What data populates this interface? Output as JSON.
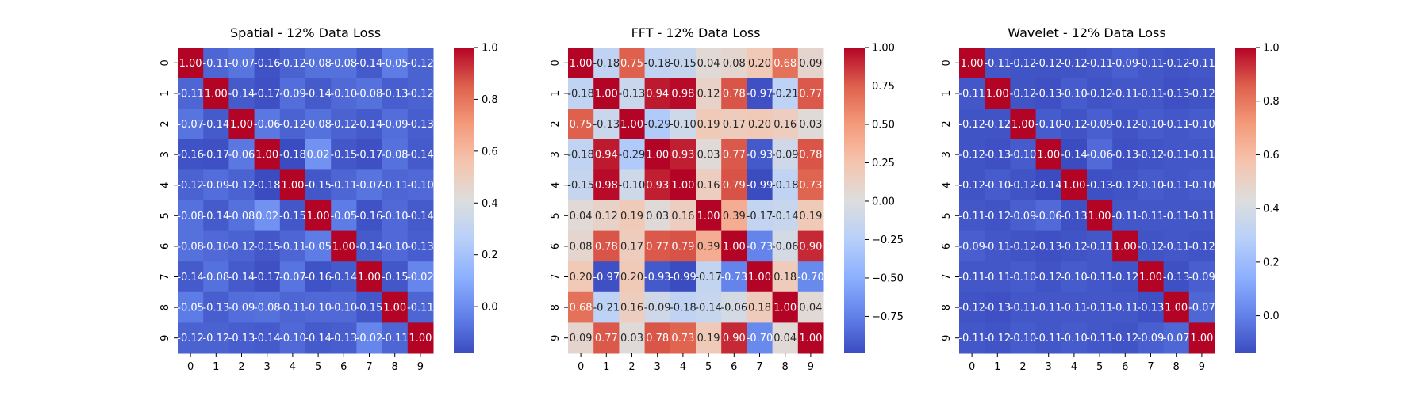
{
  "chart_data": [
    {
      "type": "heatmap",
      "title": "Spatial - 12% Data Loss",
      "x_ticks": [
        "0",
        "1",
        "2",
        "3",
        "4",
        "5",
        "6",
        "7",
        "8",
        "9"
      ],
      "y_ticks": [
        "0",
        "1",
        "2",
        "3",
        "4",
        "5",
        "6",
        "7",
        "8",
        "9"
      ],
      "colormap": "coolwarm",
      "vmin": -0.18,
      "vmax": 1.0,
      "colorbar_ticks": [
        1.0,
        0.8,
        0.6,
        0.4,
        0.2,
        0.0
      ],
      "colorbar_tick_labels": [
        "1.0",
        "0.8",
        "0.6",
        "0.4",
        "0.2",
        "0.0"
      ],
      "values": [
        [
          1.0,
          -0.11,
          -0.07,
          -0.16,
          -0.12,
          -0.08,
          -0.08,
          -0.14,
          -0.05,
          -0.12
        ],
        [
          -0.11,
          1.0,
          -0.14,
          -0.17,
          -0.09,
          -0.14,
          -0.1,
          -0.08,
          -0.13,
          -0.12
        ],
        [
          -0.07,
          -0.14,
          1.0,
          -0.06,
          -0.12,
          -0.08,
          -0.12,
          -0.14,
          -0.09,
          -0.13
        ],
        [
          -0.16,
          -0.17,
          -0.06,
          1.0,
          -0.18,
          0.02,
          -0.15,
          -0.17,
          -0.08,
          -0.14
        ],
        [
          -0.12,
          -0.09,
          -0.12,
          -0.18,
          1.0,
          -0.15,
          -0.11,
          -0.07,
          -0.11,
          -0.1
        ],
        [
          -0.08,
          -0.14,
          -0.08,
          0.02,
          -0.15,
          1.0,
          -0.05,
          -0.16,
          -0.1,
          -0.14
        ],
        [
          -0.08,
          -0.1,
          -0.12,
          -0.15,
          -0.11,
          -0.05,
          1.0,
          -0.14,
          -0.1,
          -0.13
        ],
        [
          -0.14,
          -0.08,
          -0.14,
          -0.17,
          -0.07,
          -0.16,
          -0.14,
          1.0,
          -0.15,
          -0.02
        ],
        [
          -0.05,
          -0.13,
          -0.09,
          -0.08,
          -0.11,
          -0.1,
          -0.1,
          -0.15,
          1.0,
          -0.11
        ],
        [
          -0.12,
          -0.12,
          -0.13,
          -0.14,
          -0.1,
          -0.14,
          -0.13,
          -0.02,
          -0.11,
          1.0
        ]
      ]
    },
    {
      "type": "heatmap",
      "title": "FFT - 12% Data Loss",
      "x_ticks": [
        "0",
        "1",
        "2",
        "3",
        "4",
        "5",
        "6",
        "7",
        "8",
        "9"
      ],
      "y_ticks": [
        "0",
        "1",
        "2",
        "3",
        "4",
        "5",
        "6",
        "7",
        "8",
        "9"
      ],
      "colormap": "coolwarm",
      "vmin": -0.99,
      "vmax": 1.0,
      "colorbar_ticks": [
        1.0,
        0.75,
        0.5,
        0.25,
        0.0,
        -0.25,
        -0.5,
        -0.75
      ],
      "colorbar_tick_labels": [
        "1.00",
        "0.75",
        "0.50",
        "0.25",
        "0.00",
        "−0.25",
        "−0.50",
        "−0.75"
      ],
      "values": [
        [
          1.0,
          -0.18,
          0.75,
          -0.18,
          -0.15,
          0.04,
          0.08,
          0.2,
          0.68,
          0.09
        ],
        [
          -0.18,
          1.0,
          -0.13,
          0.94,
          0.98,
          0.12,
          0.78,
          -0.97,
          -0.21,
          0.77
        ],
        [
          0.75,
          -0.13,
          1.0,
          -0.29,
          -0.1,
          0.19,
          0.17,
          0.2,
          0.16,
          0.03
        ],
        [
          -0.18,
          0.94,
          -0.29,
          1.0,
          0.93,
          0.03,
          0.77,
          -0.93,
          -0.09,
          0.78
        ],
        [
          -0.15,
          0.98,
          -0.1,
          0.93,
          1.0,
          0.16,
          0.79,
          -0.99,
          -0.18,
          0.73
        ],
        [
          0.04,
          0.12,
          0.19,
          0.03,
          0.16,
          1.0,
          0.39,
          -0.17,
          -0.14,
          0.19
        ],
        [
          0.08,
          0.78,
          0.17,
          0.77,
          0.79,
          0.39,
          1.0,
          -0.73,
          -0.06,
          0.9
        ],
        [
          0.2,
          -0.97,
          0.2,
          -0.93,
          -0.99,
          -0.17,
          -0.73,
          1.0,
          0.18,
          -0.7
        ],
        [
          0.68,
          -0.21,
          0.16,
          -0.09,
          -0.18,
          -0.14,
          -0.06,
          0.18,
          1.0,
          0.04
        ],
        [
          0.09,
          0.77,
          0.03,
          0.78,
          0.73,
          0.19,
          0.9,
          -0.7,
          0.04,
          1.0
        ]
      ]
    },
    {
      "type": "heatmap",
      "title": "Wavelet - 12% Data Loss",
      "x_ticks": [
        "0",
        "1",
        "2",
        "3",
        "4",
        "5",
        "6",
        "7",
        "8",
        "9"
      ],
      "y_ticks": [
        "0",
        "1",
        "2",
        "3",
        "4",
        "5",
        "6",
        "7",
        "8",
        "9"
      ],
      "colormap": "coolwarm",
      "vmin": -0.14,
      "vmax": 1.0,
      "colorbar_ticks": [
        1.0,
        0.8,
        0.6,
        0.4,
        0.2,
        0.0
      ],
      "colorbar_tick_labels": [
        "1.0",
        "0.8",
        "0.6",
        "0.4",
        "0.2",
        "0.0"
      ],
      "values": [
        [
          1.0,
          -0.11,
          -0.12,
          -0.12,
          -0.12,
          -0.11,
          -0.09,
          -0.11,
          -0.12,
          -0.11
        ],
        [
          -0.11,
          1.0,
          -0.12,
          -0.13,
          -0.1,
          -0.12,
          -0.11,
          -0.11,
          -0.13,
          -0.12
        ],
        [
          -0.12,
          -0.12,
          1.0,
          -0.1,
          -0.12,
          -0.09,
          -0.12,
          -0.1,
          -0.11,
          -0.1
        ],
        [
          -0.12,
          -0.13,
          -0.1,
          1.0,
          -0.14,
          -0.06,
          -0.13,
          -0.12,
          -0.11,
          -0.11
        ],
        [
          -0.12,
          -0.1,
          -0.12,
          -0.14,
          1.0,
          -0.13,
          -0.12,
          -0.1,
          -0.11,
          -0.1
        ],
        [
          -0.11,
          -0.12,
          -0.09,
          -0.06,
          -0.13,
          1.0,
          -0.11,
          -0.11,
          -0.11,
          -0.11
        ],
        [
          -0.09,
          -0.11,
          -0.12,
          -0.13,
          -0.12,
          -0.11,
          1.0,
          -0.12,
          -0.11,
          -0.12
        ],
        [
          -0.11,
          -0.11,
          -0.1,
          -0.12,
          -0.1,
          -0.11,
          -0.12,
          1.0,
          -0.13,
          -0.09
        ],
        [
          -0.12,
          -0.13,
          -0.11,
          -0.11,
          -0.11,
          -0.11,
          -0.11,
          -0.13,
          1.0,
          -0.07
        ],
        [
          -0.11,
          -0.12,
          -0.1,
          -0.11,
          -0.1,
          -0.11,
          -0.12,
          -0.09,
          -0.07,
          1.0
        ]
      ]
    }
  ]
}
